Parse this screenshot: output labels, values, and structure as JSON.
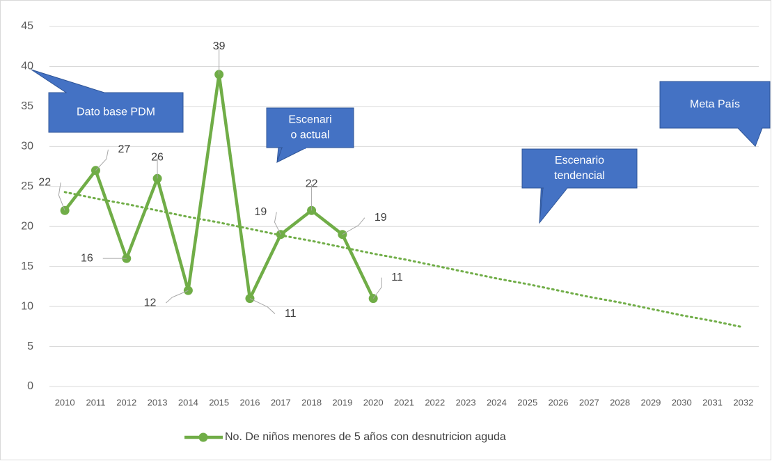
{
  "chart_data": {
    "type": "line",
    "categories": [
      "2010",
      "2011",
      "2012",
      "2013",
      "2014",
      "2015",
      "2016",
      "2017",
      "2018",
      "2019",
      "2020",
      "2021",
      "2022",
      "2023",
      "2024",
      "2025",
      "2026",
      "2027",
      "2028",
      "2029",
      "2030",
      "2031",
      "2032"
    ],
    "series": [
      {
        "name": "No. De niños menores de 5 años con desnutricion aguda",
        "color": "#70ad47",
        "values": [
          22,
          27,
          16,
          26,
          12,
          39,
          11,
          19,
          22,
          19,
          11,
          null,
          null,
          null,
          null,
          null,
          null,
          null,
          null,
          null,
          null,
          null,
          null
        ]
      }
    ],
    "trendline": {
      "color": "#70ad47",
      "values": [
        24.3,
        23.5,
        22.8,
        22.0,
        21.2,
        20.5,
        19.7,
        18.9,
        18.2,
        17.4,
        16.6,
        15.9,
        15.1,
        14.3,
        13.5,
        12.8,
        12.0,
        11.2,
        10.5,
        9.7,
        8.9,
        8.2,
        7.4
      ]
    },
    "ylim": [
      0,
      45
    ],
    "yticks": [
      0,
      5,
      10,
      15,
      20,
      25,
      30,
      35,
      40,
      45
    ],
    "grid": true,
    "legend": "bottom",
    "annotations": [
      {
        "lines": [
          "Dato base PDM"
        ]
      },
      {
        "lines": [
          "Escenari",
          "o actual"
        ]
      },
      {
        "lines": [
          "Escenario",
          "tendencial"
        ]
      },
      {
        "lines": [
          "Meta  País"
        ]
      }
    ]
  }
}
